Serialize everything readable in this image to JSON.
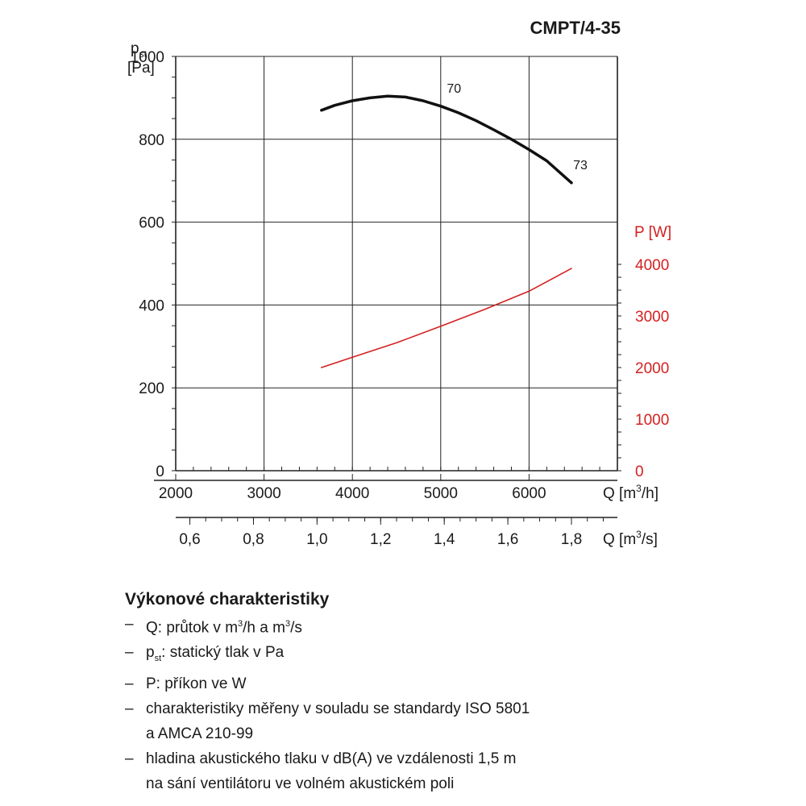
{
  "chart_data": {
    "type": "line",
    "title": "CMPT/4-35",
    "y_axis": {
      "label_main": "p",
      "label_sub": "st",
      "unit": "[Pa]",
      "range": [
        0,
        1000
      ],
      "ticks": [
        0,
        200,
        400,
        600,
        800,
        1000
      ]
    },
    "y2_axis": {
      "label": "P [W]",
      "range": [
        0,
        4000
      ],
      "ticks": [
        0,
        1000,
        2000,
        3000,
        4000
      ],
      "color": "#d42020"
    },
    "x_axis": {
      "unit_prefix": "Q [m",
      "unit_sup": "3",
      "unit_suffix": "/h]",
      "range": [
        2000,
        7000
      ],
      "ticks": [
        2000,
        3000,
        4000,
        5000,
        6000
      ]
    },
    "x2_axis": {
      "unit_prefix": "Q [m",
      "unit_sup": "3",
      "unit_suffix": "/s]",
      "ticks": [
        {
          "value": 0.6,
          "label": "0,6"
        },
        {
          "value": 0.8,
          "label": "0,8"
        },
        {
          "value": 1.0,
          "label": "1,0"
        },
        {
          "value": 1.2,
          "label": "1,2"
        },
        {
          "value": 1.4,
          "label": "1,4"
        },
        {
          "value": 1.6,
          "label": "1,6"
        },
        {
          "value": 1.8,
          "label": "1,8"
        }
      ]
    },
    "grid": true,
    "series": [
      {
        "axis": "y",
        "color": "#111111",
        "x": [
          3650,
          3800,
          4000,
          4200,
          4400,
          4600,
          4800,
          5000,
          5200,
          5400,
          5600,
          5800,
          6000,
          6200,
          6480
        ],
        "y": [
          870,
          882,
          893,
          900,
          904,
          902,
          893,
          880,
          864,
          845,
          823,
          800,
          775,
          748,
          695
        ]
      },
      {
        "axis": "y2",
        "color": "#d42020",
        "x": [
          3650,
          4000,
          4500,
          5000,
          5500,
          6000,
          6480
        ],
        "y": [
          2000,
          2200,
          2480,
          2800,
          3130,
          3480,
          3920
        ]
      }
    ],
    "annotations": [
      {
        "text": "70",
        "x": 5150,
        "y": 912
      },
      {
        "text": "73",
        "x": 6580,
        "y": 728
      }
    ]
  },
  "legend": {
    "heading": "Výkonové charakteristiky",
    "dash": "–",
    "item1": {
      "text_a": "Q: průtok v m",
      "sup_a": "3",
      "text_b": "/h a m",
      "sup_b": "3",
      "text_c": "/s"
    },
    "item2": {
      "text_a": "p",
      "sub": "st",
      "text_b": ": statický tlak v Pa"
    },
    "item3": "P: příkon ve W",
    "item4_line1": "charakteristiky měřeny v souladu se standardy ISO 5801",
    "item4_line2": "a AMCA 210-99",
    "item5_line1": "hladina akustického tlaku v dB(A) ve vzdálenosti 1,5 m",
    "item5_line2": "na sání ventilátoru ve volném akustickém poli"
  }
}
